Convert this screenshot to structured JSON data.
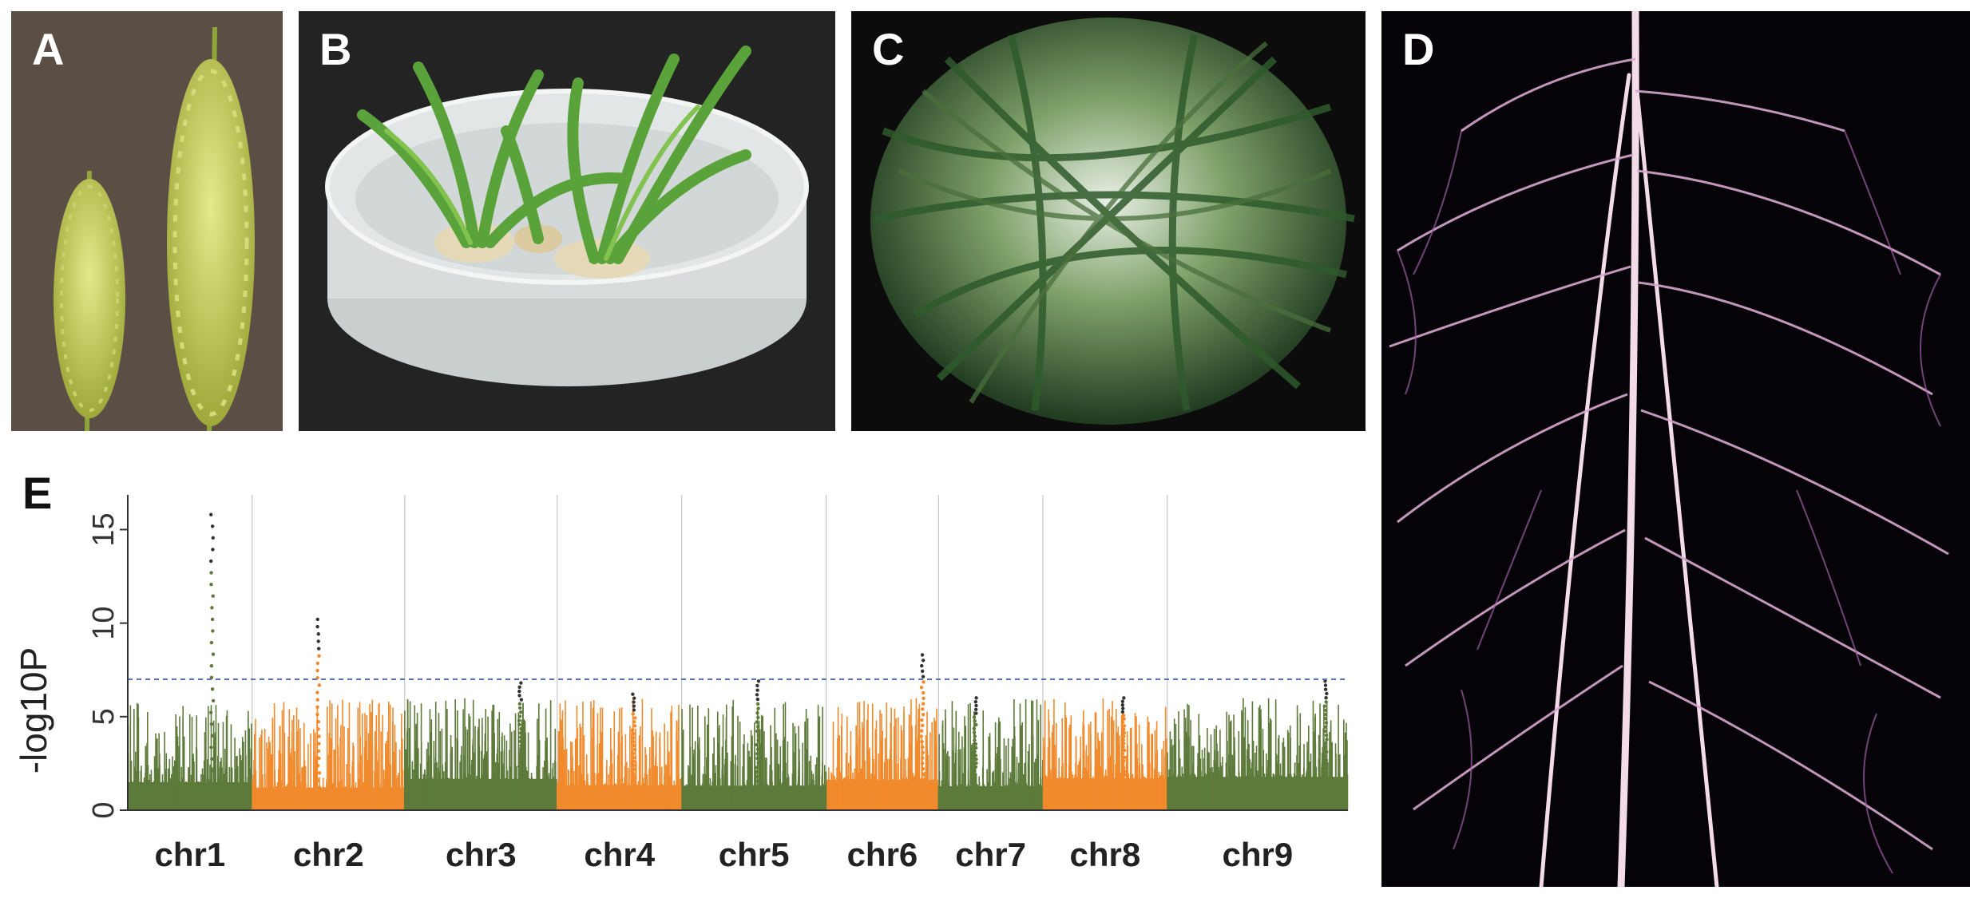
{
  "panels": {
    "a": {
      "label": "A"
    },
    "b": {
      "label": "B"
    },
    "c": {
      "label": "C"
    },
    "d": {
      "label": "D"
    },
    "e": {
      "label": "E"
    }
  },
  "chart_data": {
    "type": "scatter",
    "subtype": "manhattan",
    "title": "",
    "xlabel": "",
    "ylabel": "-log10P",
    "ylim": [
      0,
      16
    ],
    "yticks": [
      0,
      5,
      10,
      15
    ],
    "threshold": 7,
    "threshold_style": "dashed blue",
    "grid": false,
    "colors": {
      "odd_chromosome": "#5d7a3a",
      "even_chromosome": "#f08a2c",
      "threshold": "#5b6fb3"
    },
    "chromosomes": [
      {
        "name": "chr1",
        "peak": 15.8
      },
      {
        "name": "chr2",
        "peak": 10.2
      },
      {
        "name": "chr3",
        "peak": 6.8
      },
      {
        "name": "chr4",
        "peak": 6.2
      },
      {
        "name": "chr5",
        "peak": 6.9
      },
      {
        "name": "chr6",
        "peak": 8.3
      },
      {
        "name": "chr7",
        "peak": 6.0
      },
      {
        "name": "chr8",
        "peak": 6.0
      },
      {
        "name": "chr9",
        "peak": 6.9
      }
    ]
  }
}
